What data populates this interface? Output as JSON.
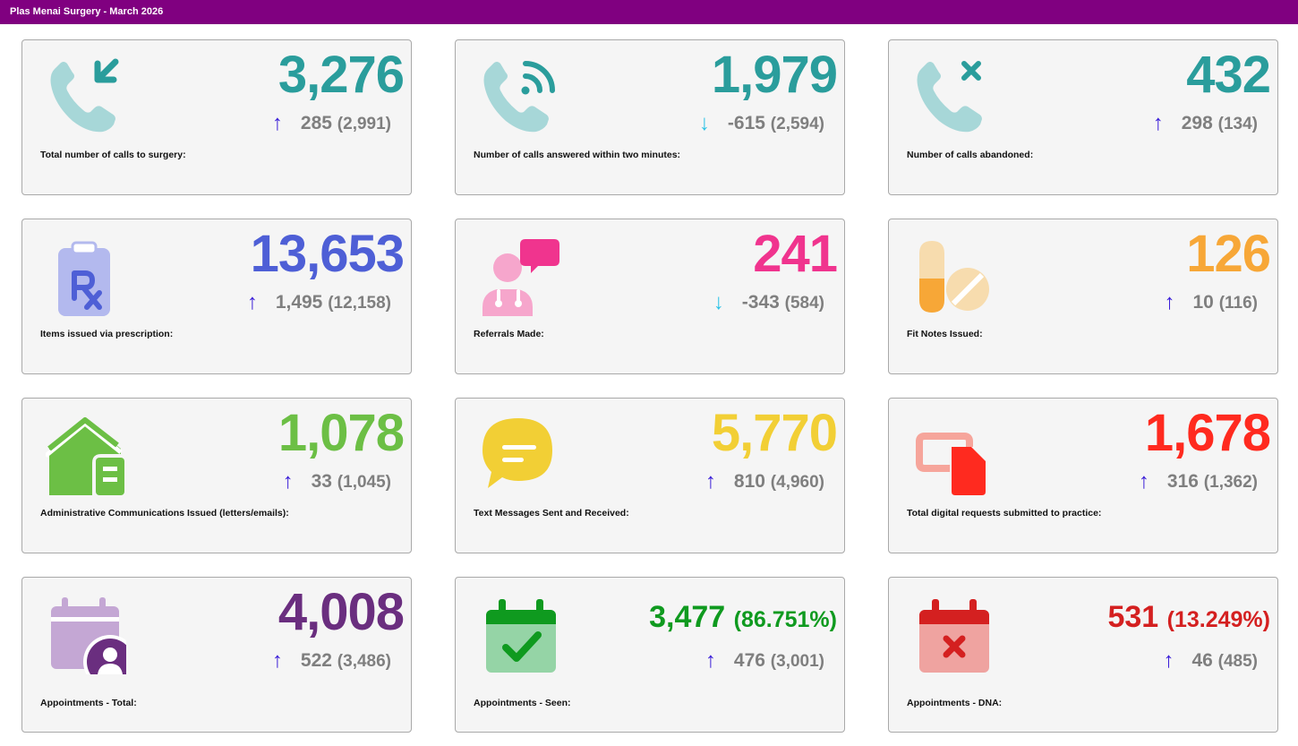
{
  "header": {
    "title": "Plas Menai Surgery - March 2026"
  },
  "cards": [
    {
      "value": "3,276",
      "change": "285",
      "previous": "(2,991)",
      "trend": "up",
      "label": "Total number of calls to surgery:",
      "color": "#2a9d9c",
      "icon": "phone-incoming-icon"
    },
    {
      "value": "1,979",
      "change": "-615",
      "previous": "(2,594)",
      "trend": "down",
      "label": "Number of calls answered within two minutes:",
      "color": "#2a9d9c",
      "icon": "phone-signal-icon"
    },
    {
      "value": "432",
      "change": "298",
      "previous": "(134)",
      "trend": "up",
      "label": "Number of calls abandoned:",
      "color": "#2a9d9c",
      "icon": "phone-cancel-icon"
    },
    {
      "value": "13,653",
      "change": "1,495",
      "previous": "(12,158)",
      "trend": "up",
      "label": "Items issued via prescription:",
      "color": "#4e5fd6",
      "icon": "prescription-icon"
    },
    {
      "value": "241",
      "change": "-343",
      "previous": "(584)",
      "trend": "down",
      "label": "Referrals Made:",
      "color": "#f0348e",
      "icon": "doctor-chat-icon"
    },
    {
      "value": "126",
      "change": "10",
      "previous": "(116)",
      "trend": "up",
      "label": "Fit Notes Issued:",
      "color": "#f7a737",
      "icon": "pills-icon"
    },
    {
      "value": "1,078",
      "change": "33",
      "previous": "(1,045)",
      "trend": "up",
      "label": "Administrative Communications Issued (letters/emails):",
      "color": "#6cbf45",
      "icon": "house-letter-icon"
    },
    {
      "value": "5,770",
      "change": "810",
      "previous": "(4,960)",
      "trend": "up",
      "label": "Text Messages Sent and Received:",
      "color": "#f2cf35",
      "icon": "message-bubble-icon"
    },
    {
      "value": "1,678",
      "change": "316",
      "previous": "(1,362)",
      "trend": "up",
      "label": "Total digital requests submitted to practice:",
      "color": "#ff2a1f",
      "icon": "digital-file-icon"
    },
    {
      "value": "4,008",
      "change": "522",
      "previous": "(3,486)",
      "trend": "up",
      "label": "Appointments - Total:",
      "color": "#6a2e7f",
      "icon": "calendar-user-icon"
    },
    {
      "value": "3,477",
      "pct": "(86.751%)",
      "change": "476",
      "previous": "(3,001)",
      "trend": "up",
      "label": "Appointments - Seen:",
      "color": "#0f9a1f",
      "icon": "calendar-check-icon"
    },
    {
      "value": "531",
      "pct": "(13.249%)",
      "change": "46",
      "previous": "(485)",
      "trend": "up",
      "label": "Appointments - DNA:",
      "color": "#d42020",
      "icon": "calendar-cross-icon"
    }
  ]
}
